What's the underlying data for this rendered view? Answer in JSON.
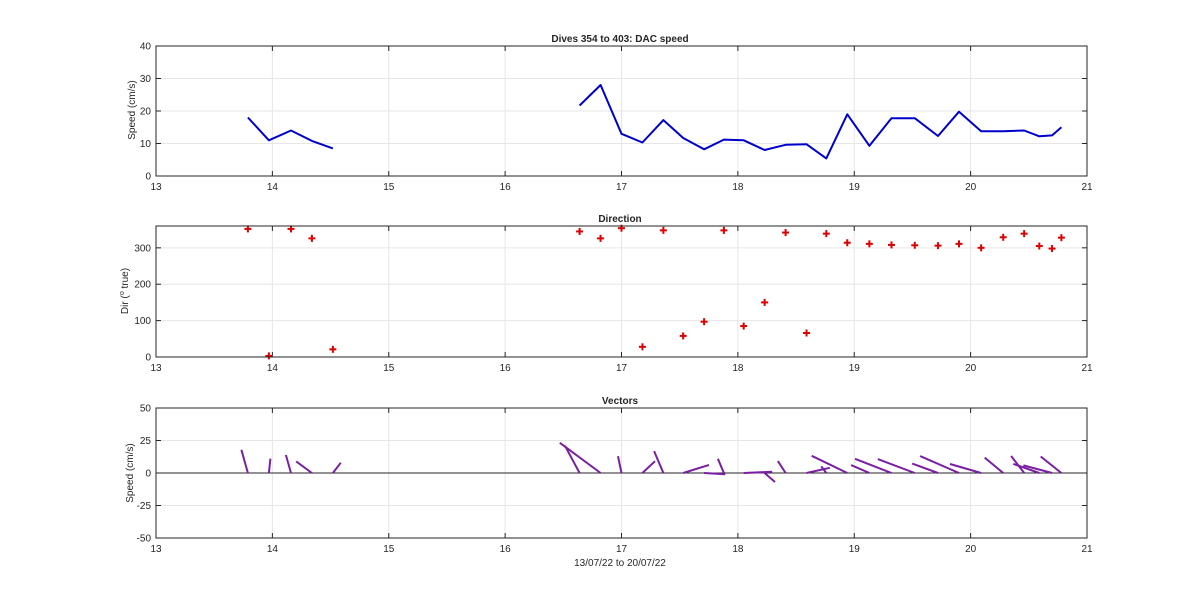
{
  "chart_data": [
    {
      "type": "line",
      "title": "Dives 354 to 403: DAC speed",
      "xlabel": "",
      "ylabel": "Speed (cm/s)",
      "xlim": [
        13,
        21
      ],
      "ylim": [
        0,
        40
      ],
      "xticks": [
        13,
        14,
        15,
        16,
        17,
        18,
        19,
        20,
        21
      ],
      "yticks": [
        0,
        10,
        20,
        30,
        40
      ],
      "grid": true,
      "color": "#0000cc",
      "segments": [
        {
          "x": [
            13.79,
            13.97,
            14.16,
            14.34,
            14.52
          ],
          "y": [
            18,
            11,
            14,
            10.8,
            8.5
          ]
        },
        {
          "x": [
            16.64,
            16.82,
            17.0,
            17.18,
            17.36,
            17.53,
            17.71,
            17.88,
            18.05,
            18.23,
            18.41,
            18.59,
            18.76,
            18.94,
            19.13,
            19.32,
            19.52,
            19.72,
            19.9,
            20.09,
            20.28,
            20.46,
            20.59,
            20.7,
            20.78
          ],
          "y": [
            21.7,
            28,
            13,
            10.3,
            17.2,
            11.7,
            8.2,
            11.2,
            11,
            8,
            9.6,
            9.8,
            5.4,
            19,
            9.3,
            17.8,
            17.8,
            12.3,
            19.8,
            13.8,
            13.8,
            14,
            12.2,
            12.5,
            15
          ]
        }
      ]
    },
    {
      "type": "scatter",
      "title": "Direction",
      "xlabel": "",
      "ylabel": "Dir (° true)",
      "ylabel_parts": [
        "Dir (",
        "o",
        " true)"
      ],
      "xlim": [
        13,
        21
      ],
      "ylim": [
        0,
        360
      ],
      "xticks": [
        13,
        14,
        15,
        16,
        17,
        18,
        19,
        20,
        21
      ],
      "yticks": [
        0,
        100,
        200,
        300
      ],
      "grid": true,
      "marker": "+",
      "color": "#dd0000",
      "x": [
        13.79,
        13.97,
        14.16,
        14.34,
        14.52,
        16.64,
        16.82,
        17.0,
        17.18,
        17.36,
        17.53,
        17.71,
        17.88,
        18.05,
        18.23,
        18.41,
        18.59,
        18.76,
        18.94,
        19.13,
        19.32,
        19.52,
        19.72,
        19.9,
        20.09,
        20.28,
        20.46,
        20.59,
        20.7,
        20.78
      ],
      "y": [
        352,
        3,
        352,
        326,
        21,
        345,
        326,
        354,
        28,
        348,
        58,
        97,
        348,
        85,
        150,
        342,
        66,
        339,
        314,
        311,
        308,
        307,
        306,
        311,
        300,
        329,
        339,
        305,
        298,
        328
      ]
    },
    {
      "type": "vector",
      "title": "Vectors",
      "xlabel": "13/07/22 to 20/07/22",
      "ylabel": "Speed (cm/s)",
      "xlim": [
        13,
        21
      ],
      "ylim": [
        -50,
        50
      ],
      "xticks": [
        13,
        14,
        15,
        16,
        17,
        18,
        19,
        20,
        21
      ],
      "yticks": [
        -50,
        -25,
        0,
        25,
        50
      ],
      "grid": true,
      "zero_line": true,
      "color": "#7a1fa2",
      "sticks": [
        {
          "x": 13.79,
          "speed": 18,
          "dir": 352
        },
        {
          "x": 13.97,
          "speed": 11,
          "dir": 3
        },
        {
          "x": 14.16,
          "speed": 14,
          "dir": 352
        },
        {
          "x": 14.34,
          "speed": 10.8,
          "dir": 326
        },
        {
          "x": 14.52,
          "speed": 8.5,
          "dir": 21
        },
        {
          "x": 16.64,
          "speed": 21.7,
          "dir": 345
        },
        {
          "x": 16.82,
          "speed": 28,
          "dir": 326
        },
        {
          "x": 17.0,
          "speed": 13,
          "dir": 354
        },
        {
          "x": 17.18,
          "speed": 10.3,
          "dir": 28
        },
        {
          "x": 17.36,
          "speed": 17.2,
          "dir": 348
        },
        {
          "x": 17.53,
          "speed": 11.7,
          "dir": 58
        },
        {
          "x": 17.71,
          "speed": 8.2,
          "dir": 97
        },
        {
          "x": 17.88,
          "speed": 11.2,
          "dir": 348
        },
        {
          "x": 18.05,
          "speed": 11,
          "dir": 85
        },
        {
          "x": 18.23,
          "speed": 8,
          "dir": 150
        },
        {
          "x": 18.41,
          "speed": 9.6,
          "dir": 342
        },
        {
          "x": 18.59,
          "speed": 9.8,
          "dir": 66
        },
        {
          "x": 18.76,
          "speed": 5.4,
          "dir": 339
        },
        {
          "x": 18.94,
          "speed": 19,
          "dir": 314
        },
        {
          "x": 19.13,
          "speed": 9.3,
          "dir": 311
        },
        {
          "x": 19.32,
          "speed": 17.8,
          "dir": 308
        },
        {
          "x": 19.52,
          "speed": 17.8,
          "dir": 307
        },
        {
          "x": 19.72,
          "speed": 12.3,
          "dir": 306
        },
        {
          "x": 19.9,
          "speed": 19.8,
          "dir": 311
        },
        {
          "x": 20.09,
          "speed": 13.8,
          "dir": 300
        },
        {
          "x": 20.28,
          "speed": 13.8,
          "dir": 329
        },
        {
          "x": 20.46,
          "speed": 14,
          "dir": 339
        },
        {
          "x": 20.59,
          "speed": 12.2,
          "dir": 305
        },
        {
          "x": 20.7,
          "speed": 12.5,
          "dir": 298
        },
        {
          "x": 20.78,
          "speed": 15,
          "dir": 328
        }
      ]
    }
  ]
}
